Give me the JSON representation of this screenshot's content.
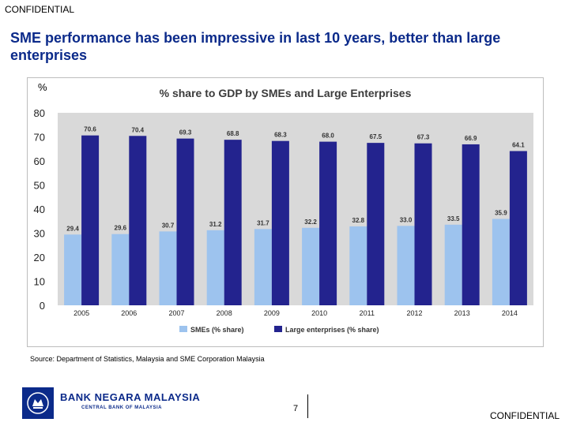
{
  "header": {
    "confidential": "CONFIDENTIAL"
  },
  "slide": {
    "title": "SME performance has been impressive in last 10 years, better than large enterprises",
    "unit": "%",
    "source": "Source: Department of Statistics, Malaysia and SME Corporation Malaysia",
    "page_number": "7"
  },
  "footer": {
    "bank_name": "BANK NEGARA MALAYSIA",
    "bank_subtitle": "CENTRAL BANK OF MALAYSIA",
    "confidential": "CONFIDENTIAL"
  },
  "chart_data": {
    "type": "bar",
    "title": "% share to GDP by SMEs and Large Enterprises",
    "categories": [
      "2005",
      "2006",
      "2007",
      "2008",
      "2009",
      "2010",
      "2011",
      "2012",
      "2013",
      "2014"
    ],
    "series": [
      {
        "name": "SMEs (% share)",
        "color": "#9dc3ee",
        "values": [
          29.4,
          29.6,
          30.7,
          31.2,
          31.7,
          32.2,
          32.8,
          33.0,
          33.5,
          35.9
        ],
        "labels": [
          "29.4",
          "29.6",
          "30.7",
          "31.2",
          "31.7",
          "32.2",
          "32.8",
          "33.0",
          "33.5",
          "35.9"
        ]
      },
      {
        "name": "Large enterprises (% share)",
        "color": "#23238e",
        "values": [
          70.6,
          70.4,
          69.3,
          68.8,
          68.3,
          68.0,
          67.5,
          67.3,
          66.9,
          64.1
        ],
        "labels": [
          "70.6",
          "70.4",
          "69.3",
          "68.8",
          "68.3",
          "68.0",
          "67.5",
          "67.3",
          "66.9",
          "64.1"
        ]
      }
    ],
    "ylim": [
      0,
      80
    ],
    "yticks": [
      "0",
      "10",
      "20",
      "30",
      "40",
      "50",
      "60",
      "70",
      "80"
    ],
    "plot_background": "#d9d9d9",
    "legend_position": "bottom",
    "grid": false
  }
}
